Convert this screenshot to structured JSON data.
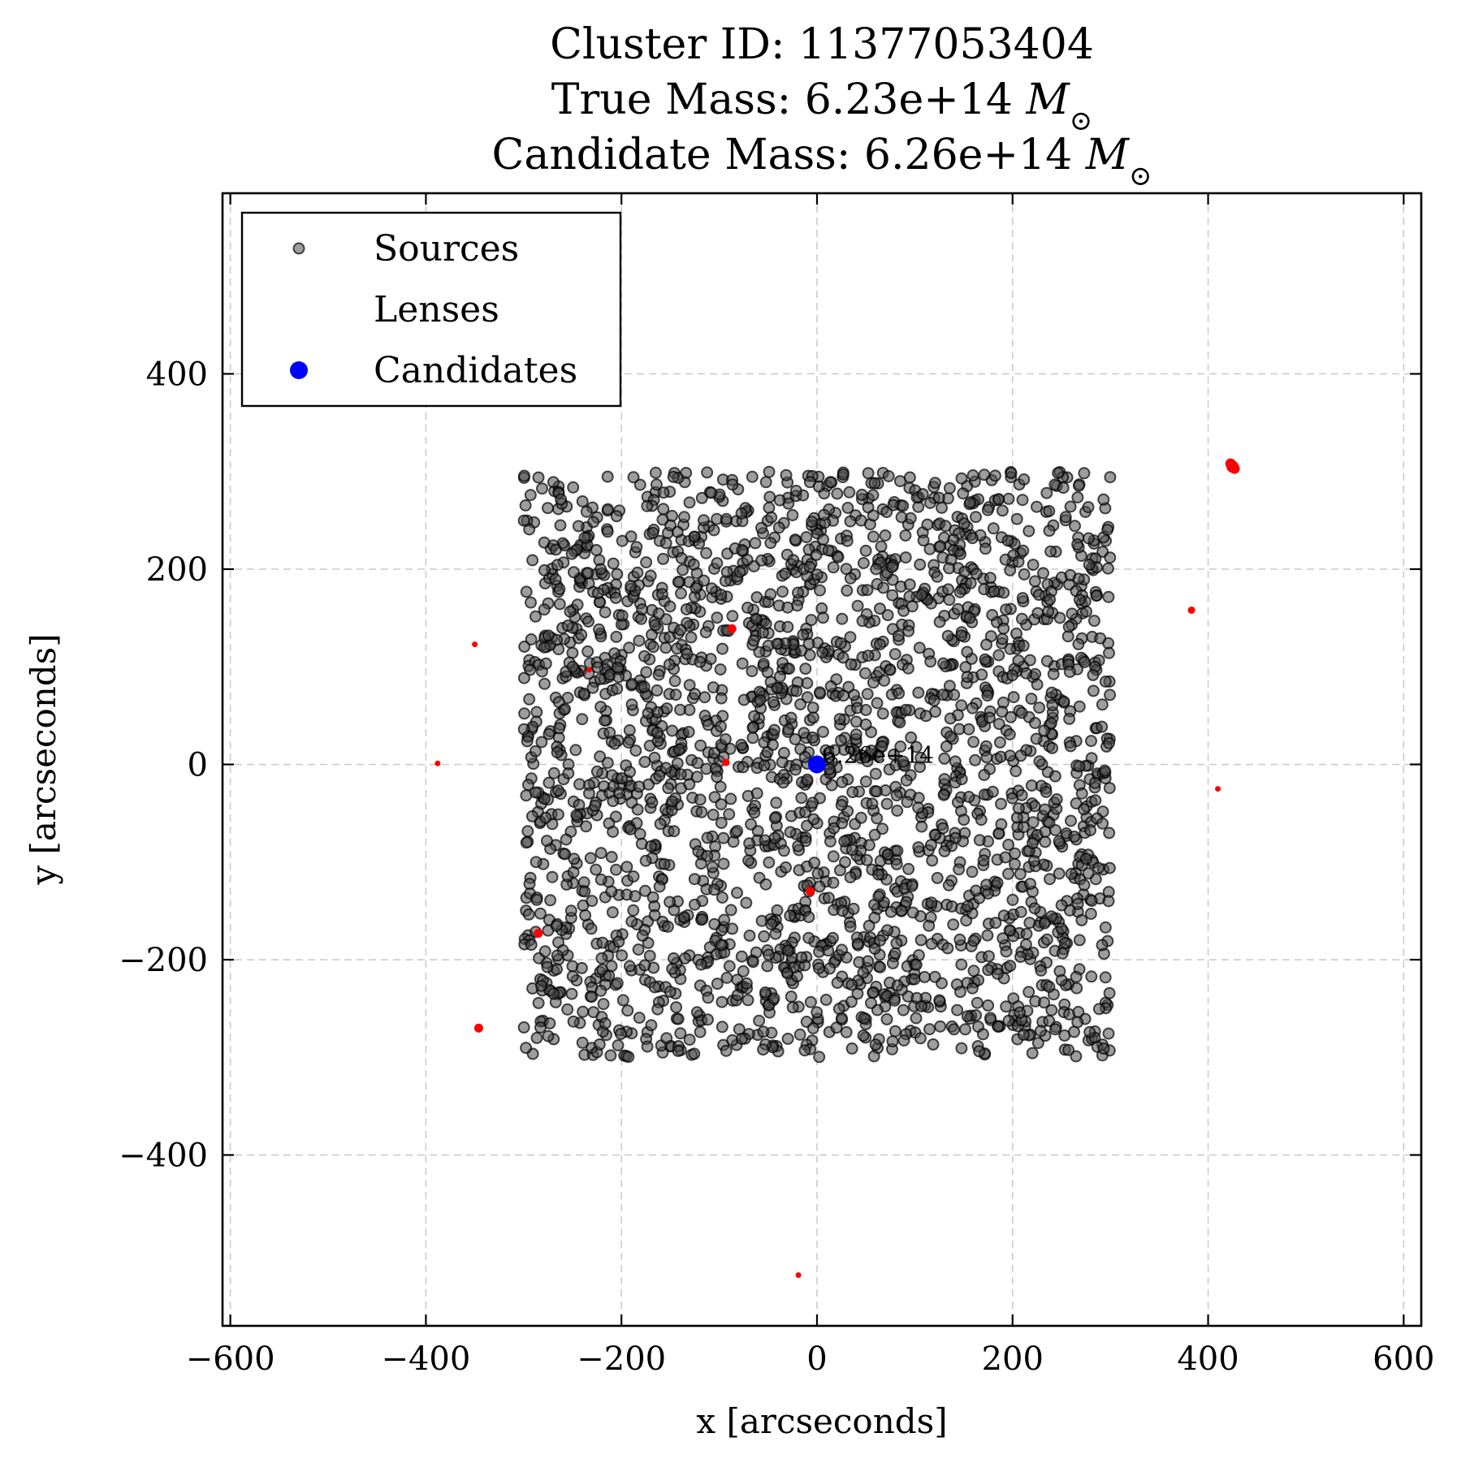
{
  "chart_data": {
    "type": "scatter",
    "title_lines": [
      {
        "prefix": "Cluster ID: 11377053404",
        "suffix": ""
      },
      {
        "prefix": "True Mass: 6.23e+14 ",
        "suffix": "M",
        "sub": "⊙"
      },
      {
        "prefix": "Candidate Mass: 6.26e+14 ",
        "suffix": "M",
        "sub": "⊙"
      }
    ],
    "xlabel": "x [arcseconds]",
    "ylabel": "y [arcseconds]",
    "xlim": [
      -608,
      618
    ],
    "ylim": [
      -575,
      585
    ],
    "xticks": [
      -600,
      -400,
      -200,
      0,
      200,
      400,
      600
    ],
    "xtick_labels": [
      "−600",
      "−400",
      "−200",
      "0",
      "200",
      "400",
      "600"
    ],
    "yticks": [
      -400,
      -200,
      0,
      200,
      400
    ],
    "ytick_labels": [
      "−400",
      "−200",
      "0",
      "200",
      "400"
    ],
    "grid": true,
    "legend_position": "top-left",
    "colors": {
      "sources": "#4d4d4d",
      "sources_edge": "#000000",
      "lenses": "#ff0000",
      "candidates": "#0000ff",
      "grid": "#cccccc"
    },
    "series": [
      {
        "name": "Sources",
        "marker": "circle",
        "region": {
          "x": [
            -300,
            300
          ],
          "y": [
            -300,
            300
          ]
        },
        "approx_count": 2500
      },
      {
        "name": "Lenses",
        "marker": "circle",
        "points": [
          {
            "x": 425,
            "y": 305,
            "size": 7
          },
          {
            "x": 423,
            "y": 308,
            "size": 6
          },
          {
            "x": 427,
            "y": 303,
            "size": 6
          },
          {
            "x": 383,
            "y": 158,
            "size": 4
          },
          {
            "x": 410,
            "y": -25,
            "size": 3
          },
          {
            "x": -350,
            "y": 123,
            "size": 3
          },
          {
            "x": -233,
            "y": 97,
            "size": 3
          },
          {
            "x": -87,
            "y": 139,
            "size": 5
          },
          {
            "x": -388,
            "y": 1,
            "size": 3
          },
          {
            "x": -93,
            "y": 2,
            "size": 4
          },
          {
            "x": -7,
            "y": -130,
            "size": 5
          },
          {
            "x": -285,
            "y": -173,
            "size": 5
          },
          {
            "x": -346,
            "y": -270,
            "size": 5
          },
          {
            "x": -19,
            "y": -523,
            "size": 3
          }
        ]
      },
      {
        "name": "Candidates",
        "marker": "circle",
        "points": [
          {
            "x": 0,
            "y": 0,
            "label": "6.26e+14"
          }
        ]
      }
    ],
    "legend_entries": [
      {
        "name": "Sources"
      },
      {
        "name": "Lenses"
      },
      {
        "name": "Candidates"
      }
    ]
  }
}
